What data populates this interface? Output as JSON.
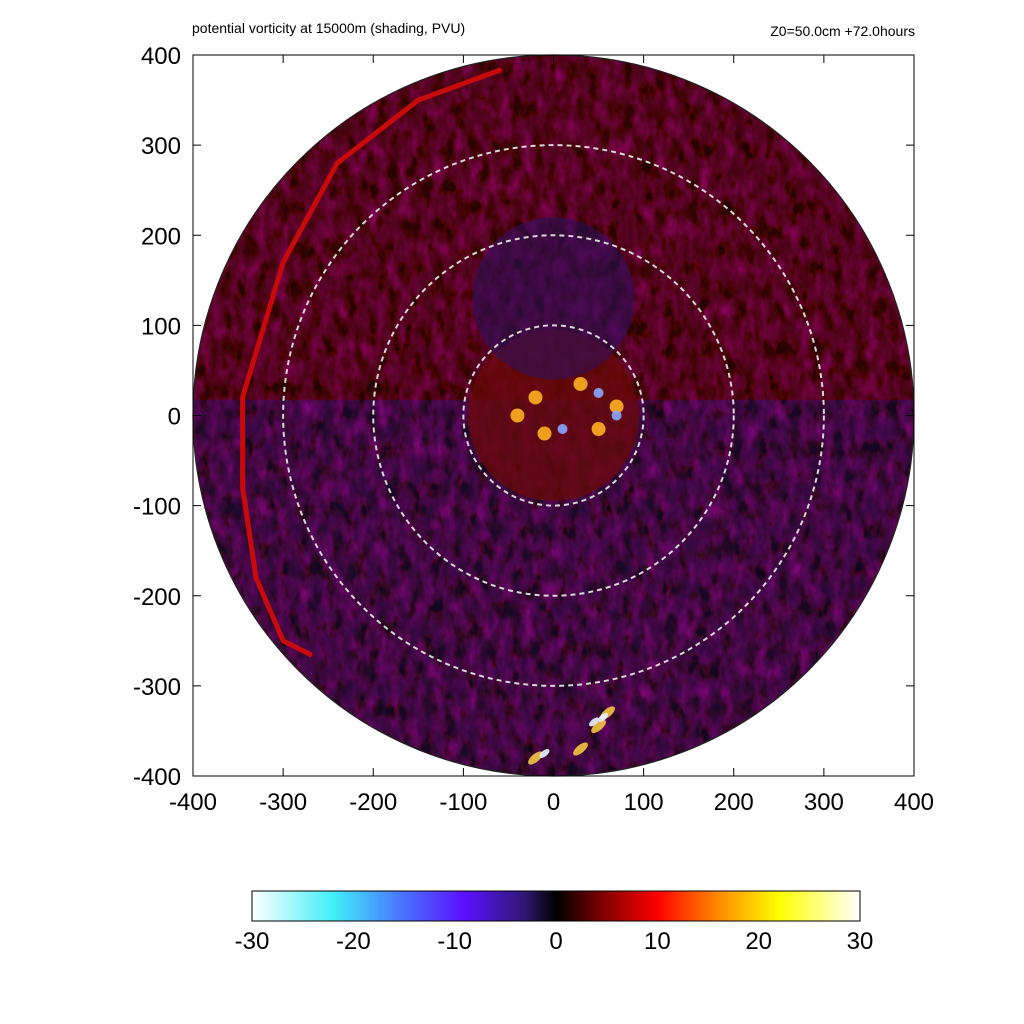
{
  "chart_data": {
    "type": "heatmap",
    "title": "potential vorticity at 15000m (shading, PVU)",
    "subtitle": "Z0=50.0cm  +72.0hours",
    "xlim": [
      -400,
      400
    ],
    "ylim": [
      -400,
      400
    ],
    "x_ticks": [
      -400,
      -300,
      -200,
      -100,
      0,
      100,
      200,
      300,
      400
    ],
    "y_ticks": [
      -400,
      -300,
      -200,
      -100,
      0,
      100,
      200,
      300,
      400
    ],
    "domain_radius": 400,
    "reference_circles": [
      100,
      200,
      300
    ],
    "colorbar": {
      "range": [
        -30,
        30
      ],
      "ticks": [
        -30,
        -20,
        -10,
        0,
        10,
        20,
        30
      ],
      "colors": [
        {
          "value": -30,
          "color": "#ffffff"
        },
        {
          "value": -22,
          "color": "#40f0f8"
        },
        {
          "value": -15,
          "color": "#4a70ff"
        },
        {
          "value": -9,
          "color": "#5a10ff"
        },
        {
          "value": -3,
          "color": "#301870"
        },
        {
          "value": 0,
          "color": "#000000"
        },
        {
          "value": 4,
          "color": "#700000"
        },
        {
          "value": 10,
          "color": "#ff0000"
        },
        {
          "value": 16,
          "color": "#ff8a00"
        },
        {
          "value": 22,
          "color": "#ffff00"
        },
        {
          "value": 30,
          "color": "#ffffff"
        }
      ]
    },
    "features": {
      "outer_red_spiral_arm": [
        [
          -60,
          383
        ],
        [
          -150,
          350
        ],
        [
          -240,
          280
        ],
        [
          -300,
          170
        ],
        [
          -345,
          20
        ],
        [
          -345,
          -80
        ],
        [
          -330,
          -180
        ],
        [
          -300,
          -250
        ],
        [
          -270,
          -265
        ]
      ],
      "inner_core_hot_spots": [
        [
          -20,
          20
        ],
        [
          30,
          35
        ],
        [
          -40,
          0
        ],
        [
          50,
          -15
        ],
        [
          70,
          10
        ],
        [
          -10,
          -20
        ]
      ],
      "inner_core_cold_spots": [
        [
          50,
          25
        ],
        [
          70,
          0
        ],
        [
          10,
          -15
        ]
      ],
      "southern_hot_spots": [
        [
          60,
          -330
        ],
        [
          30,
          -370
        ],
        [
          -20,
          -380
        ],
        [
          50,
          -345
        ]
      ],
      "southern_cold_spots": [
        [
          45,
          -340
        ],
        [
          -10,
          -375
        ],
        [
          55,
          -335
        ]
      ]
    }
  }
}
